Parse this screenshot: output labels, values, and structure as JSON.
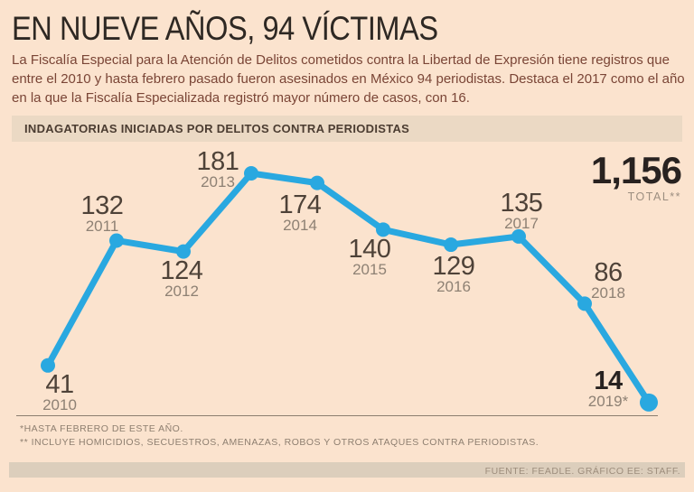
{
  "header": {
    "title": "EN NUEVE AÑOS, 94 VÍCTIMAS",
    "subtitle": "La Fiscalía Especial para la Atención de Delitos cometidos contra la Libertad de Expresión tiene registros que entre el 2010 y hasta febrero pasado fueron asesinados en México 94 periodistas. Destaca el 2017 como el año en la que la Fiscalía Especializada registró mayor número de casos, con 16."
  },
  "banner": {
    "label": "INDAGATORIAS INICIADAS POR DELITOS CONTRA PERIODISTAS"
  },
  "chart_data": {
    "type": "line",
    "title": "INDAGATORIAS INICIADAS POR DELITOS CONTRA PERIODISTAS",
    "categories": [
      "2010",
      "2011",
      "2012",
      "2013",
      "2014",
      "2015",
      "2016",
      "2017",
      "2018",
      "2019*"
    ],
    "values": [
      41,
      132,
      124,
      181,
      174,
      140,
      129,
      135,
      86,
      14
    ],
    "highlighted_category": "2019*",
    "total_value": "1,156",
    "total_label": "TOTAL**",
    "line_color": "#29a8e0",
    "ylim": [
      0,
      200
    ],
    "grid": false,
    "legend": "none"
  },
  "footnotes": [
    "*HASTA FEBRERO DE ESTE AÑO.",
    "** INCLUYE HOMICIDIOS, SECUESTROS, AMENAZAS, ROBOS Y OTROS ATAQUES CONTRA PERIODISTAS."
  ],
  "source": "FUENTE: FEADLE. GRÁFICO EE: STAFF.",
  "colors": {
    "background": "#fbe3ce",
    "banner_bg": "#ebd9c4",
    "banner_text": "#4b3c31",
    "title": "#2e2823",
    "subtitle": "#7a4536",
    "accent_blue": "#29a8e0",
    "number": "#4e4238",
    "year": "#8e8174",
    "total": "#282220",
    "muted": "#8e7f70",
    "source_bg": "#dccebc"
  }
}
